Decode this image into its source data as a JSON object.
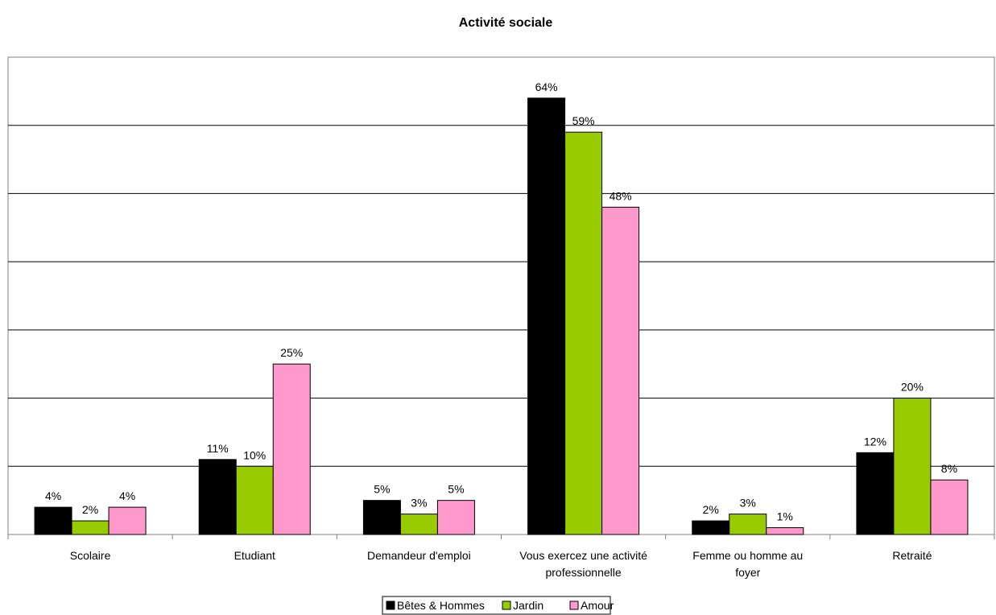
{
  "chart_data": {
    "type": "bar",
    "title": "Activité sociale",
    "categories": [
      [
        "Scolaire"
      ],
      [
        "Etudiant"
      ],
      [
        "Demandeur d'emploi"
      ],
      [
        "Vous exercez une activité",
        "professionnelle"
      ],
      [
        "Femme ou homme au",
        "foyer"
      ],
      [
        "Retraité"
      ]
    ],
    "series": [
      {
        "name": "Bêtes & Hommes",
        "color": "#000000",
        "values": [
          4,
          11,
          5,
          64,
          2,
          12
        ],
        "labels": [
          "4%",
          "11%",
          "5%",
          "64%",
          "2%",
          "12%"
        ]
      },
      {
        "name": "Jardin",
        "color": "#99CC00",
        "values": [
          2,
          10,
          3,
          59,
          3,
          20
        ],
        "labels": [
          "2%",
          "10%",
          "3%",
          "59%",
          "3%",
          "20%"
        ]
      },
      {
        "name": "Amour",
        "color": "#FF99CC",
        "values": [
          4,
          25,
          5,
          48,
          1,
          8
        ],
        "labels": [
          "4%",
          "25%",
          "5%",
          "48%",
          "1%",
          "8%"
        ]
      }
    ],
    "ylim": [
      0,
      70
    ],
    "grid_step": 10,
    "grid": true,
    "legend_position": "bottom",
    "xlabel": "",
    "ylabel": ""
  }
}
